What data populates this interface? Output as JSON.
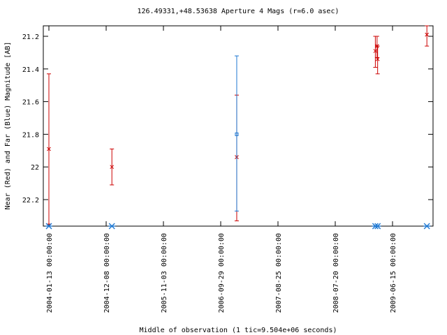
{
  "chart_data": {
    "type": "scatter",
    "title": "126.49331,+48.53638   Aperture 4 Mags (r=6.0 asec)",
    "xlabel": "Middle of observation (1 tic=9.504e+06 seconds)",
    "ylabel": "Near (Red) and Far (Blue) Magnitude [AB]",
    "x_tick_labels": [
      "2004-01-13 00:00:00",
      "2004-12-08 00:00:00",
      "2005-11-03 00:00:00",
      "2006-09-29 00:00:00",
      "2007-08-25 00:00:00",
      "2008-07-20 00:00:00",
      "2009-06-15 00:00:00"
    ],
    "y_tick_labels": [
      "21.2",
      "21.4",
      "21.6",
      "21.8",
      "22",
      "22.2"
    ],
    "y_ticks": [
      21.2,
      21.4,
      21.6,
      21.8,
      22.0,
      22.2
    ],
    "ylim": [
      22.35,
      21.12
    ],
    "xlim_ticks": [
      -0.02,
      6.65
    ],
    "colors": {
      "near": "#cc0000",
      "far": "#1e78d2",
      "axis": "#000000"
    },
    "series": [
      {
        "color_key": "near",
        "marker": "x",
        "points": [
          {
            "x": 0.0,
            "y": 21.89,
            "err_low": 21.43,
            "err_high": 22.35
          },
          {
            "x": 1.1,
            "y": 22.0,
            "err_low": 21.89,
            "err_high": 22.11
          },
          {
            "x": 3.28,
            "y": 21.94,
            "err_low": 21.56,
            "err_high": 22.33
          },
          {
            "x": 5.7,
            "y": 21.29,
            "err_low": 21.2,
            "err_high": 21.39
          },
          {
            "x": 5.73,
            "y": 21.26,
            "err_low": 21.2,
            "err_high": 21.33
          },
          {
            "x": 5.74,
            "y": 21.34,
            "err_low": 21.26,
            "err_high": 21.43
          },
          {
            "x": 6.6,
            "y": 21.19,
            "err_low": 21.12,
            "err_high": 21.26
          }
        ]
      },
      {
        "color_key": "far",
        "marker": "square",
        "points": [
          {
            "x": 3.28,
            "y": 21.8,
            "err_low": 21.32,
            "err_high": 22.27
          }
        ]
      }
    ],
    "limit_markers": {
      "color_key": "far",
      "marker": "asterisk",
      "x": [
        0.0,
        1.1,
        5.7,
        5.74,
        6.6
      ]
    }
  }
}
